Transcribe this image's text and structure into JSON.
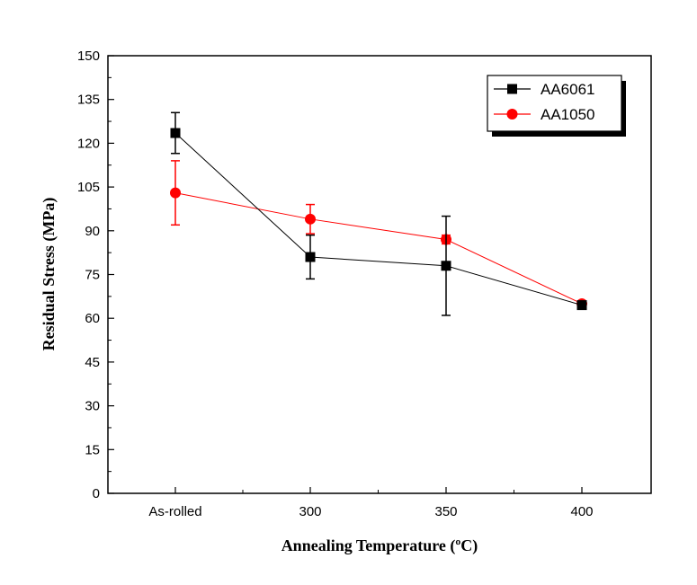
{
  "chart_data": {
    "type": "line",
    "categories": [
      "As-rolled",
      "300",
      "350",
      "400"
    ],
    "xlabel": "Annealing Temperature (ºC)",
    "ylabel": "Residual Stress (MPa)",
    "ylim": [
      0,
      150
    ],
    "yticks": [
      "0",
      "15",
      "30",
      "45",
      "60",
      "75",
      "90",
      "105",
      "120",
      "135",
      "150"
    ],
    "grid": false,
    "legend_position": "top-right",
    "series": [
      {
        "name": "AA6061",
        "color": "#000000",
        "marker": "square",
        "values": [
          123.5,
          81,
          78,
          64.5
        ],
        "errors": [
          7,
          7.5,
          17,
          0
        ]
      },
      {
        "name": "AA1050",
        "color": "#ff0000",
        "marker": "circle",
        "values": [
          103,
          94,
          87,
          65
        ],
        "errors": [
          11,
          5,
          1.5,
          0
        ]
      }
    ]
  }
}
